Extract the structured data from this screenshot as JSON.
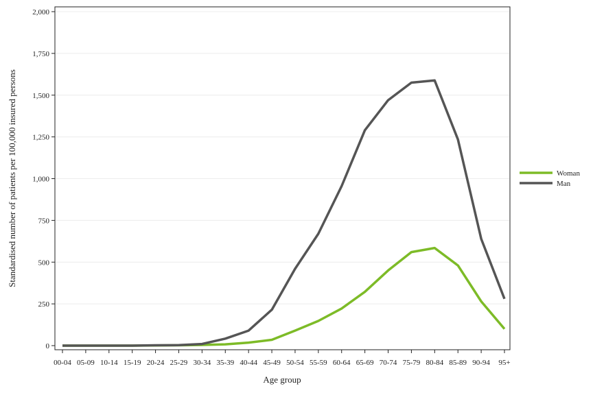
{
  "chart_data": {
    "type": "line",
    "title": "",
    "xlabel": "Age group",
    "ylabel": "Standardised number of patients per 100,000 insured persons",
    "categories": [
      "00-04",
      "05-09",
      "10-14",
      "15-19",
      "20-24",
      "25-29",
      "30-34",
      "35-39",
      "40-44",
      "45-49",
      "50-54",
      "55-59",
      "60-64",
      "65-69",
      "70-74",
      "75-79",
      "80-84",
      "85-89",
      "90-94",
      "95+"
    ],
    "ylim": [
      0,
      2000
    ],
    "yticks": [
      0,
      250,
      500,
      750,
      1000,
      1250,
      1500,
      1750,
      2000
    ],
    "ytick_labels": [
      "0",
      "250",
      "500",
      "750",
      "1,000",
      "1,250",
      "1,500",
      "1,750",
      "2,000"
    ],
    "grid": true,
    "legend_position": "right",
    "series": [
      {
        "name": "Woman",
        "color": "#7dbb27",
        "values": [
          0,
          0,
          0,
          0,
          1,
          2,
          4,
          8,
          18,
          35,
          90,
          148,
          222,
          322,
          450,
          560,
          585,
          480,
          265,
          100
        ]
      },
      {
        "name": "Man",
        "color": "#555555",
        "values": [
          0,
          0,
          0,
          0,
          2,
          3,
          10,
          42,
          90,
          215,
          460,
          670,
          955,
          1290,
          1470,
          1575,
          1588,
          1235,
          640,
          280
        ]
      }
    ]
  }
}
